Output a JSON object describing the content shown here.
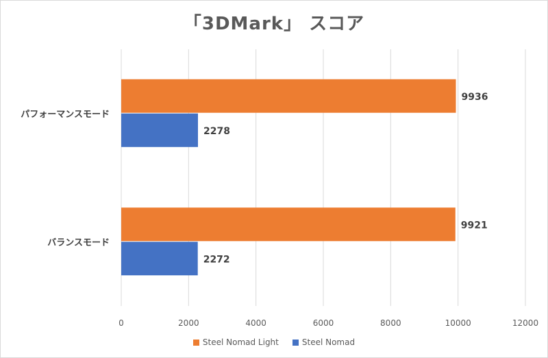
{
  "chart_data": {
    "type": "bar",
    "orientation": "horizontal",
    "title": "「3DMark」 スコア",
    "categories": [
      "パフォーマンスモード",
      "バランスモード"
    ],
    "series": [
      {
        "name": "Steel Nomad Light",
        "values": [
          9936,
          9921
        ],
        "color": "#ED7D31"
      },
      {
        "name": "Steel Nomad",
        "values": [
          2278,
          2272
        ],
        "color": "#4472C4"
      }
    ],
    "xlim": [
      0,
      12000
    ],
    "xticks": [
      "0",
      "2000",
      "4000",
      "6000",
      "8000",
      "10000",
      "12000"
    ],
    "grid": true,
    "legend_position": "bottom"
  }
}
